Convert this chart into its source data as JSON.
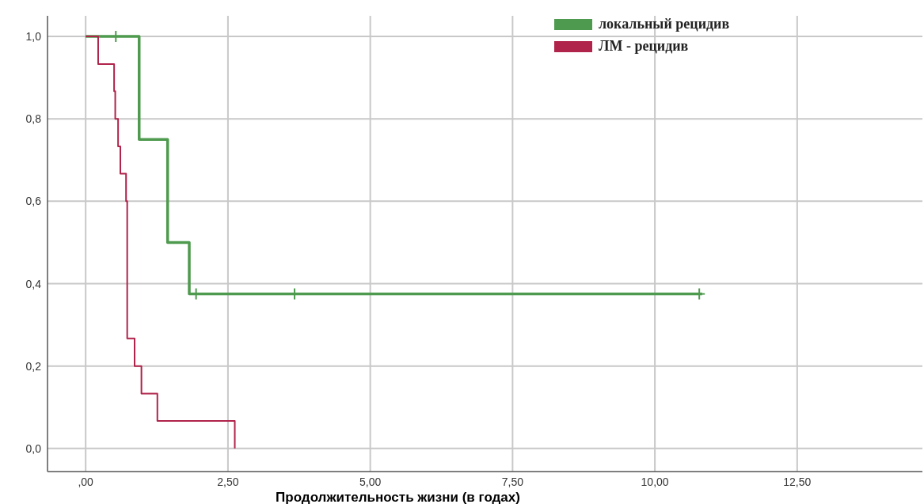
{
  "chart_data": {
    "type": "step",
    "xlabel": "Продолжительность жизни (в годах)",
    "xlim": [
      -0.67,
      14.7
    ],
    "xticks": [
      {
        "value": 0,
        "label": ",00"
      },
      {
        "value": 2.5,
        "label": "2,50"
      },
      {
        "value": 5,
        "label": "5,00"
      },
      {
        "value": 7.5,
        "label": "7,50"
      },
      {
        "value": 10,
        "label": "10,00"
      },
      {
        "value": 12.5,
        "label": "12,50"
      }
    ],
    "ylim": [
      -0.056,
      1.05
    ],
    "yticks": [
      {
        "value": 0,
        "label": "0,0"
      },
      {
        "value": 0.2,
        "label": "0,2"
      },
      {
        "value": 0.4,
        "label": "0,4"
      },
      {
        "value": 0.6,
        "label": "0,6"
      },
      {
        "value": 0.8,
        "label": "0,8"
      },
      {
        "value": 1,
        "label": "1,0"
      }
    ],
    "grid": true,
    "legend": "top right",
    "series": [
      {
        "name": "локальный рецидив",
        "color": "#4e9a4e",
        "x": [
          0,
          0.94,
          1.44,
          1.82,
          10.83
        ],
        "values": [
          1,
          0.75,
          0.5,
          0.375,
          0.375
        ]
      },
      {
        "name": "ЛМ - рецидив",
        "color": "#b0234a",
        "x": [
          0,
          0.22,
          0.5,
          0.52,
          0.57,
          0.61,
          0.71,
          0.73,
          0.86,
          0.98,
          1.26,
          2.62
        ],
        "values": [
          1,
          0.933,
          0.867,
          0.8,
          0.733,
          0.667,
          0.6,
          0.267,
          0.2,
          0.133,
          0.067,
          0
        ]
      },
      {
        "type": "scatter",
        "marker": "cross",
        "color": "#4e9a4e",
        "x": [
          0.53,
          1.94,
          3.67,
          10.78
        ],
        "values": [
          1,
          0.375,
          0.375,
          0.375
        ]
      }
    ]
  }
}
